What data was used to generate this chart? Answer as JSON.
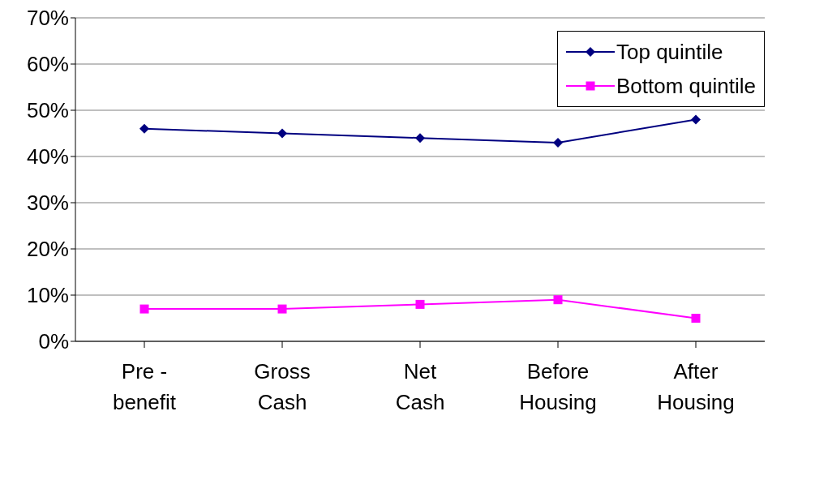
{
  "chart_data": {
    "type": "line",
    "categories": [
      "Pre - benefit",
      "Gross Cash",
      "Net Cash",
      "Before Housing",
      "After Housing"
    ],
    "series": [
      {
        "name": "Top quintile",
        "color": "#000080",
        "marker": "diamond",
        "values": [
          46,
          45,
          44,
          43,
          48
        ]
      },
      {
        "name": "Bottom quintile",
        "color": "#ff00ff",
        "marker": "square",
        "values": [
          7,
          7,
          8,
          9,
          5
        ]
      }
    ],
    "ylim": [
      0,
      70
    ],
    "yticks": [
      {
        "value": 0,
        "label": "0%"
      },
      {
        "value": 10,
        "label": "10%"
      },
      {
        "value": 20,
        "label": "20%"
      },
      {
        "value": 30,
        "label": "30%"
      },
      {
        "value": 40,
        "label": "40%"
      },
      {
        "value": 50,
        "label": "50%"
      },
      {
        "value": 60,
        "label": "60%"
      },
      {
        "value": 70,
        "label": "70%"
      }
    ],
    "grid": "y",
    "legend": "top right"
  }
}
